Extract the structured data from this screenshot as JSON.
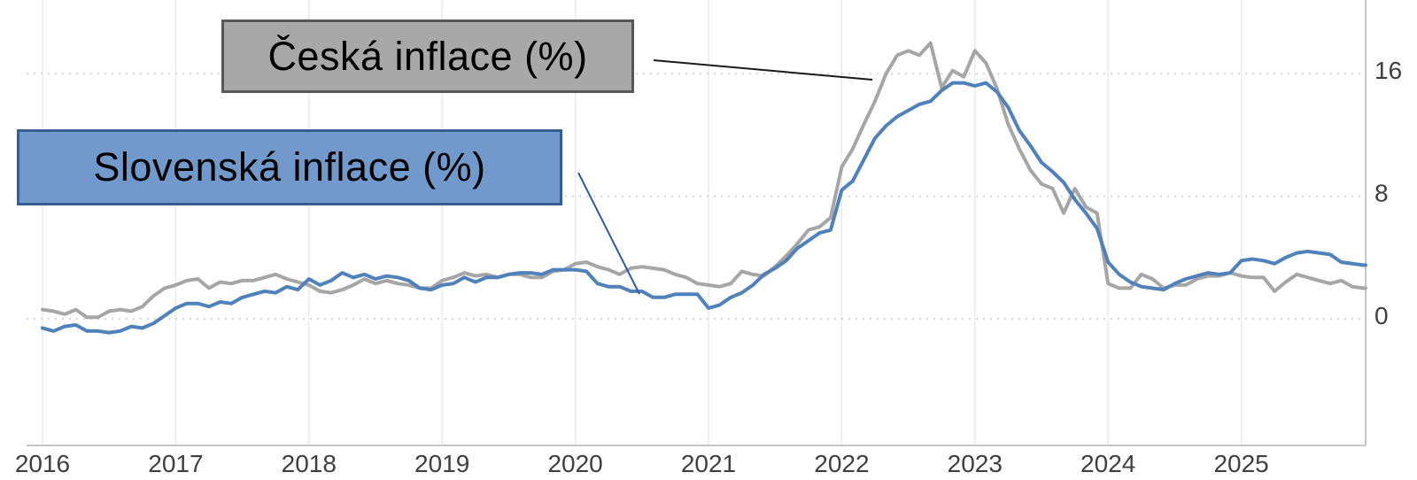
{
  "page": {
    "background": "#ffffff"
  },
  "annotations": {
    "ceska_label": "Česká inflace (%)",
    "slovenska_label": "Slovenská inflace (%)",
    "ceska_box": {
      "fill": "#a8a8a8",
      "border": "#575757"
    },
    "slovenska_box": {
      "fill": "#7299cc",
      "border": "#355e92"
    },
    "ceska_callout_color": "#1a1a1a",
    "slovenska_callout_color": "#2f5d9e"
  },
  "axes": {
    "x_tick_labels": [
      "2016",
      "2017",
      "2018",
      "2019",
      "2020",
      "2021",
      "2022",
      "2023",
      "2024",
      "2025"
    ],
    "y_tick_labels": [
      "16",
      "8",
      "0"
    ],
    "grid_vertical_color": "#ececec",
    "grid_horizontal_color": "#d8d8d8",
    "axis_line_color": "#c6c6c6",
    "tick_label_color": "#3f3f3f"
  },
  "chart_data": {
    "type": "line",
    "title": "",
    "xlabel": "",
    "ylabel": "",
    "frequency": "monthly",
    "x_start_year": 2016,
    "xticks": [
      2016,
      2017,
      2018,
      2019,
      2020,
      2021,
      2022,
      2023,
      2024,
      2025
    ],
    "yticks": [
      16,
      8,
      0
    ],
    "ylim": [
      -8.3,
      20.8
    ],
    "grid": true,
    "legend_position": "floating-callout-boxes",
    "series": [
      {
        "name": "Česká inflace (%)",
        "color": "#a6a6a6",
        "values": [
          0.6,
          0.5,
          0.3,
          0.6,
          0.1,
          0.1,
          0.5,
          0.6,
          0.5,
          0.8,
          1.5,
          2.0,
          2.2,
          2.5,
          2.6,
          2.0,
          2.4,
          2.3,
          2.5,
          2.5,
          2.7,
          2.9,
          2.6,
          2.4,
          2.2,
          1.8,
          1.7,
          1.9,
          2.2,
          2.6,
          2.3,
          2.5,
          2.3,
          2.2,
          2.0,
          2.0,
          2.5,
          2.7,
          3.0,
          2.8,
          2.9,
          2.7,
          2.9,
          2.9,
          2.7,
          2.7,
          3.1,
          3.2,
          3.6,
          3.7,
          3.4,
          3.2,
          2.9,
          3.3,
          3.4,
          3.3,
          3.2,
          2.9,
          2.7,
          2.3,
          2.2,
          2.1,
          2.3,
          3.1,
          2.9,
          2.8,
          3.4,
          4.1,
          4.9,
          5.8,
          6.0,
          6.6,
          9.9,
          11.1,
          12.7,
          14.2,
          16.0,
          17.2,
          17.5,
          17.2,
          18.0,
          15.1,
          16.2,
          15.8,
          17.5,
          16.7,
          15.0,
          12.7,
          11.1,
          9.7,
          8.8,
          8.5,
          6.9,
          8.5,
          7.3,
          6.9,
          2.3,
          2.0,
          2.0,
          2.9,
          2.6,
          2.0,
          2.2,
          2.2,
          2.6,
          2.8,
          2.8,
          3.0,
          2.8,
          2.7,
          2.7,
          1.8,
          2.4,
          2.9,
          2.7,
          2.5,
          2.3,
          2.5,
          2.1,
          2.0
        ]
      },
      {
        "name": "Slovenská inflace (%)",
        "color": "#4f81bd",
        "values": [
          -0.6,
          -0.8,
          -0.5,
          -0.4,
          -0.8,
          -0.8,
          -0.9,
          -0.8,
          -0.5,
          -0.6,
          -0.3,
          0.2,
          0.7,
          1.0,
          1.0,
          0.8,
          1.1,
          1.0,
          1.4,
          1.6,
          1.8,
          1.7,
          2.1,
          1.9,
          2.6,
          2.2,
          2.5,
          3.0,
          2.7,
          2.9,
          2.6,
          2.8,
          2.7,
          2.5,
          2.0,
          1.9,
          2.2,
          2.3,
          2.7,
          2.4,
          2.7,
          2.7,
          2.9,
          3.0,
          3.0,
          2.9,
          3.2,
          3.2,
          3.2,
          3.1,
          2.3,
          2.1,
          2.1,
          1.8,
          1.8,
          1.4,
          1.4,
          1.6,
          1.6,
          1.6,
          0.7,
          0.9,
          1.4,
          1.7,
          2.2,
          2.9,
          3.3,
          3.8,
          4.6,
          5.1,
          5.6,
          5.8,
          8.4,
          9.0,
          10.4,
          11.8,
          12.6,
          13.2,
          13.6,
          14.0,
          14.2,
          14.9,
          15.4,
          15.4,
          15.2,
          15.4,
          14.8,
          13.8,
          12.3,
          11.3,
          10.2,
          9.6,
          8.9,
          7.8,
          6.9,
          5.9,
          3.7,
          2.9,
          2.4,
          2.1,
          2.0,
          1.9,
          2.3,
          2.6,
          2.8,
          3.0,
          2.9,
          3.0,
          3.8,
          3.9,
          3.8,
          3.6,
          4.0,
          4.3,
          4.4,
          4.3,
          4.2,
          3.7,
          3.6,
          3.5
        ]
      }
    ]
  }
}
